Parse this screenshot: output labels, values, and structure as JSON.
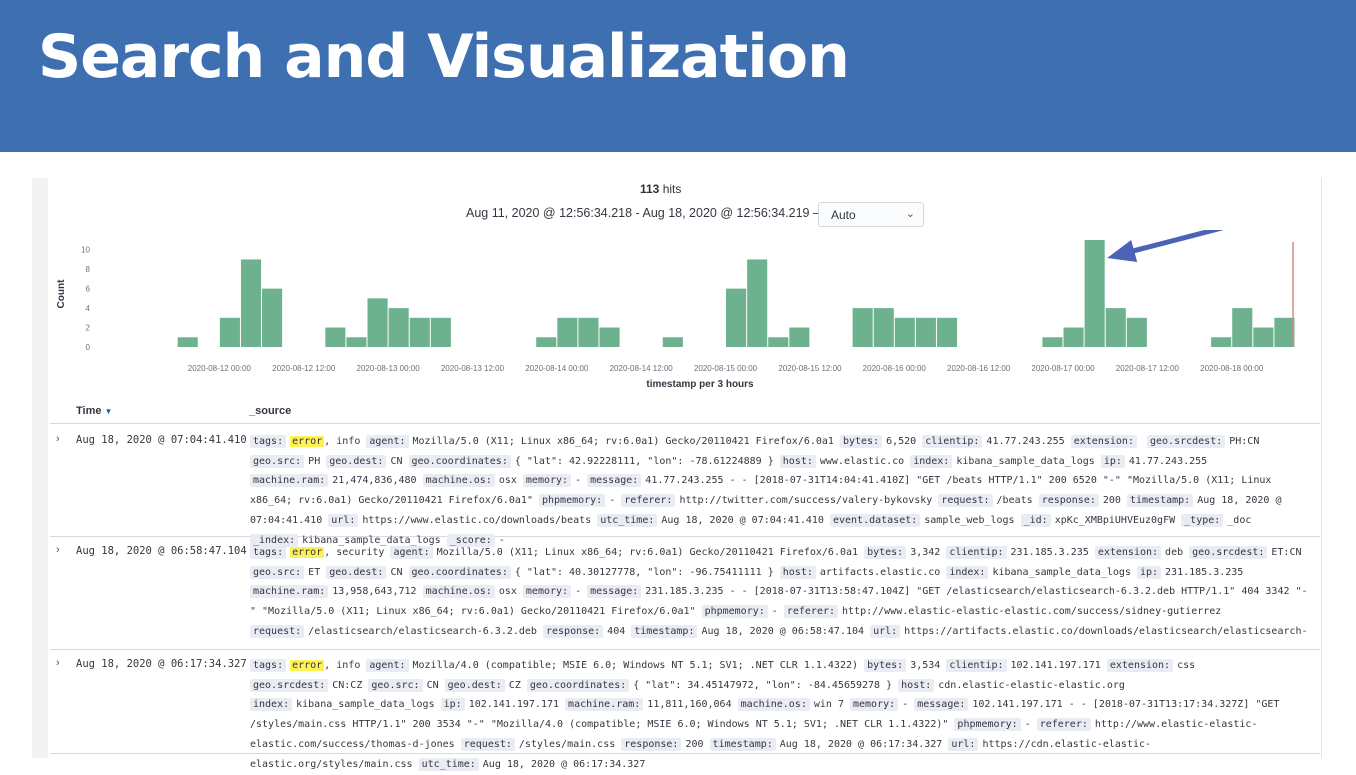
{
  "slide": {
    "title": "Search and Visualization"
  },
  "results": {
    "hits_count": "113",
    "hits_label": "hits",
    "date_range": "Aug 11, 2020 @ 12:56:34.218 - Aug 18, 2020 @ 12:56:34.219 —",
    "interval": "Auto"
  },
  "colors": {
    "bar": "#6db18e",
    "now_line": "#d08b8b",
    "arrow": "#4a63b7",
    "banner": "#3e6fb0"
  },
  "chart_data": {
    "type": "bar",
    "ylabel": "Count",
    "xlabel": "timestamp per 3 hours",
    "ylim": [
      0,
      12
    ],
    "yticks": [
      0,
      2,
      4,
      6,
      8,
      10
    ],
    "x_tick_labels": [
      "2020-08-12 00:00",
      "2020-08-12 12:00",
      "2020-08-13 00:00",
      "2020-08-13 12:00",
      "2020-08-14 00:00",
      "2020-08-14 12:00",
      "2020-08-15 00:00",
      "2020-08-15 12:00",
      "2020-08-16 00:00",
      "2020-08-16 12:00",
      "2020-08-17 00:00",
      "2020-08-17 12:00",
      "2020-08-18 00:00"
    ],
    "x_start": "2020-08-11 12:00",
    "bucket_hours": 3,
    "values": [
      0,
      0,
      1,
      0,
      3,
      9,
      6,
      0,
      0,
      2,
      1,
      5,
      4,
      3,
      3,
      0,
      0,
      0,
      0,
      1,
      3,
      3,
      2,
      0,
      0,
      1,
      0,
      0,
      6,
      9,
      1,
      2,
      0,
      0,
      4,
      4,
      3,
      3,
      3,
      0,
      0,
      0,
      0,
      1,
      2,
      11,
      4,
      3,
      0,
      0,
      0,
      1,
      4,
      2,
      3
    ],
    "grid": false,
    "annotation": "arrow pointing to peak bar (2020-08-17)"
  },
  "table": {
    "time_header": "Time",
    "source_header": "_source",
    "rows": [
      {
        "time": "Aug 18, 2020 @ 07:04:41.410",
        "fields": [
          {
            "k": "tags:",
            "v": "error, info",
            "hl": "error"
          },
          {
            "k": "agent:",
            "v": "Mozilla/5.0 (X11; Linux x86_64; rv:6.0a1) Gecko/20110421 Firefox/6.0a1"
          },
          {
            "k": "bytes:",
            "v": "6,520"
          },
          {
            "k": "clientip:",
            "v": "41.77.243.255"
          },
          {
            "k": "extension:",
            "v": ""
          },
          {
            "k": "geo.srcdest:",
            "v": "PH:CN"
          },
          {
            "k": "geo.src:",
            "v": "PH"
          },
          {
            "k": "geo.dest:",
            "v": "CN"
          },
          {
            "k": "geo.coordinates:",
            "v": "{ \"lat\": 42.92228111, \"lon\": -78.61224889 }"
          },
          {
            "k": "host:",
            "v": "www.elastic.co"
          },
          {
            "k": "index:",
            "v": "kibana_sample_data_logs"
          },
          {
            "k": "ip:",
            "v": "41.77.243.255"
          },
          {
            "k": "machine.ram:",
            "v": "21,474,836,480"
          },
          {
            "k": "machine.os:",
            "v": "osx"
          },
          {
            "k": "memory:",
            "v": "-"
          },
          {
            "k": "message:",
            "v": "41.77.243.255 - - [2018-07-31T14:04:41.410Z] \"GET /beats HTTP/1.1\" 200 6520 \"-\" \"Mozilla/5.0 (X11; Linux x86_64; rv:6.0a1) Gecko/20110421 Firefox/6.0a1\""
          },
          {
            "k": "phpmemory:",
            "v": "-"
          },
          {
            "k": "referer:",
            "v": "http://twitter.com/success/valery-bykovsky"
          },
          {
            "k": "request:",
            "v": "/beats"
          },
          {
            "k": "response:",
            "v": "200"
          },
          {
            "k": "timestamp:",
            "v": "Aug 18, 2020 @ 07:04:41.410"
          },
          {
            "k": "url:",
            "v": "https://www.elastic.co/downloads/beats"
          },
          {
            "k": "utc_time:",
            "v": "Aug 18, 2020 @ 07:04:41.410"
          },
          {
            "k": "event.dataset:",
            "v": "sample_web_logs"
          },
          {
            "k": "_id:",
            "v": "xpKc_XMBpiUHVEuz0gFW"
          },
          {
            "k": "_type:",
            "v": "_doc"
          },
          {
            "k": "_index:",
            "v": "kibana_sample_data_logs"
          },
          {
            "k": "_score:",
            "v": "-"
          }
        ]
      },
      {
        "time": "Aug 18, 2020 @ 06:58:47.104",
        "fields": [
          {
            "k": "tags:",
            "v": "error, security",
            "hl": "error"
          },
          {
            "k": "agent:",
            "v": "Mozilla/5.0 (X11; Linux x86_64; rv:6.0a1) Gecko/20110421 Firefox/6.0a1"
          },
          {
            "k": "bytes:",
            "v": "3,342"
          },
          {
            "k": "clientip:",
            "v": "231.185.3.235"
          },
          {
            "k": "extension:",
            "v": "deb"
          },
          {
            "k": "geo.srcdest:",
            "v": "ET:CN"
          },
          {
            "k": "geo.src:",
            "v": "ET"
          },
          {
            "k": "geo.dest:",
            "v": "CN"
          },
          {
            "k": "geo.coordinates:",
            "v": "{ \"lat\": 40.30127778, \"lon\": -96.75411111 }"
          },
          {
            "k": "host:",
            "v": "artifacts.elastic.co"
          },
          {
            "k": "index:",
            "v": "kibana_sample_data_logs"
          },
          {
            "k": "ip:",
            "v": "231.185.3.235"
          },
          {
            "k": "machine.ram:",
            "v": "13,958,643,712"
          },
          {
            "k": "machine.os:",
            "v": "osx"
          },
          {
            "k": "memory:",
            "v": "-"
          },
          {
            "k": "message:",
            "v": "231.185.3.235 - - [2018-07-31T13:58:47.104Z] \"GET /elasticsearch/elasticsearch-6.3.2.deb HTTP/1.1\" 404 3342 \"-\" \"Mozilla/5.0 (X11; Linux x86_64; rv:6.0a1) Gecko/20110421 Firefox/6.0a1\""
          },
          {
            "k": "phpmemory:",
            "v": "-"
          },
          {
            "k": "referer:",
            "v": "http://www.elastic-elastic-elastic.com/success/sidney-gutierrez"
          },
          {
            "k": "request:",
            "v": "/elasticsearch/elasticsearch-6.3.2.deb"
          },
          {
            "k": "response:",
            "v": "404"
          },
          {
            "k": "timestamp:",
            "v": "Aug 18, 2020 @ 06:58:47.104"
          },
          {
            "k": "url:",
            "v": "https://artifacts.elastic.co/downloads/elasticsearch/elasticsearch-"
          }
        ]
      },
      {
        "time": "Aug 18, 2020 @ 06:17:34.327",
        "fields": [
          {
            "k": "tags:",
            "v": "error, info",
            "hl": "error"
          },
          {
            "k": "agent:",
            "v": "Mozilla/4.0 (compatible; MSIE 6.0; Windows NT 5.1; SV1; .NET CLR 1.1.4322)"
          },
          {
            "k": "bytes:",
            "v": "3,534"
          },
          {
            "k": "clientip:",
            "v": "102.141.197.171"
          },
          {
            "k": "extension:",
            "v": "css"
          },
          {
            "k": "geo.srcdest:",
            "v": "CN:CZ"
          },
          {
            "k": "geo.src:",
            "v": "CN"
          },
          {
            "k": "geo.dest:",
            "v": "CZ"
          },
          {
            "k": "geo.coordinates:",
            "v": "{ \"lat\": 34.45147972, \"lon\": -84.45659278 }"
          },
          {
            "k": "host:",
            "v": "cdn.elastic-elastic-elastic.org"
          },
          {
            "k": "index:",
            "v": "kibana_sample_data_logs"
          },
          {
            "k": "ip:",
            "v": "102.141.197.171"
          },
          {
            "k": "machine.ram:",
            "v": "11,811,160,064"
          },
          {
            "k": "machine.os:",
            "v": "win 7"
          },
          {
            "k": "memory:",
            "v": "-"
          },
          {
            "k": "message:",
            "v": "102.141.197.171 - - [2018-07-31T13:17:34.327Z] \"GET /styles/main.css HTTP/1.1\" 200 3534 \"-\" \"Mozilla/4.0 (compatible; MSIE 6.0; Windows NT 5.1; SV1; .NET CLR 1.1.4322)\""
          },
          {
            "k": "phpmemory:",
            "v": "-"
          },
          {
            "k": "referer:",
            "v": "http://www.elastic-elastic-elastic.com/success/thomas-d-jones"
          },
          {
            "k": "request:",
            "v": "/styles/main.css"
          },
          {
            "k": "response:",
            "v": "200"
          },
          {
            "k": "timestamp:",
            "v": "Aug 18, 2020 @ 06:17:34.327"
          },
          {
            "k": "url:",
            "v": "https://cdn.elastic-elastic-elastic.org/styles/main.css"
          },
          {
            "k": "utc_time:",
            "v": "Aug 18, 2020 @ 06:17:34.327"
          }
        ]
      }
    ]
  }
}
